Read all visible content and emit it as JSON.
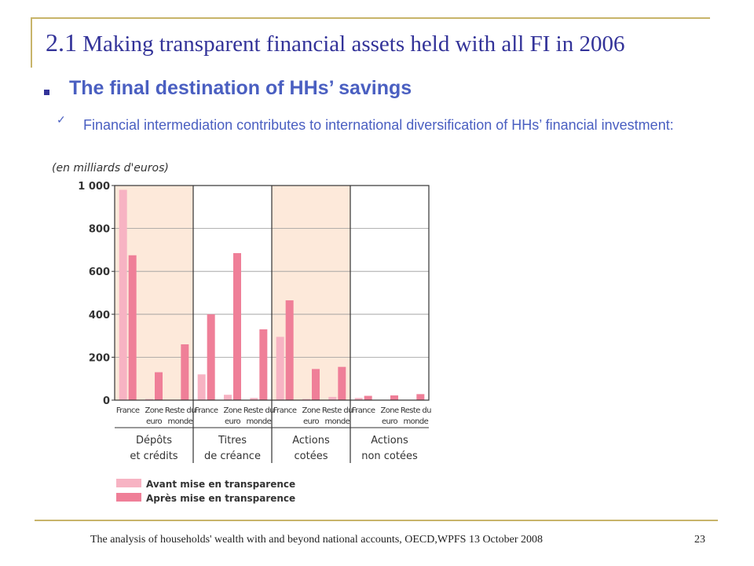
{
  "slide": {
    "title_num": "2.1",
    "title_text": " Making transparent financial assets held with all FI in 2006",
    "heading": "The final destination of HHs’ savings",
    "subtext": "Financial intermediation contributes to international diversification of HHs’ financial investment:",
    "footer": "The analysis of households' wealth with and beyond national accounts, OECD,WPFS 13 October 2008",
    "page_number": "23"
  },
  "colors": {
    "frame": "#c8b46a",
    "title": "#333399",
    "heading": "#4a5fc1",
    "before": "#f7b3c3",
    "after": "#ef7f98",
    "band": "#fde9da"
  },
  "chart_data": {
    "type": "bar",
    "unit_label": "(en milliards d'euros)",
    "ylim": [
      0,
      1000
    ],
    "yticks": [
      "0",
      "200",
      "400",
      "600",
      "800",
      "1 000"
    ],
    "ytick_values": [
      0,
      200,
      400,
      600,
      800,
      1000
    ],
    "groups": [
      {
        "label": [
          "Dépôts",
          "et crédits"
        ],
        "shaded": true
      },
      {
        "label": [
          "Titres",
          "de créance"
        ],
        "shaded": false
      },
      {
        "label": [
          "Actions",
          "cotées"
        ],
        "shaded": true
      },
      {
        "label": [
          "Actions",
          "non cotées"
        ],
        "shaded": false
      }
    ],
    "categories": [
      [
        "France"
      ],
      [
        "Zone",
        "euro"
      ],
      [
        "Reste du",
        "monde"
      ],
      [
        "France"
      ],
      [
        "Zone",
        "euro"
      ],
      [
        "Reste du",
        "monde"
      ],
      [
        "France"
      ],
      [
        "Zone",
        "euro"
      ],
      [
        "Reste du",
        "monde"
      ],
      [
        "France"
      ],
      [
        "Zone",
        "euro"
      ],
      [
        "Reste du",
        "monde"
      ]
    ],
    "series": [
      {
        "name": "Avant mise en transparence",
        "values": [
          980,
          5,
          0,
          120,
          25,
          10,
          295,
          5,
          15,
          10,
          0,
          0
        ]
      },
      {
        "name": "Après mise en transparence",
        "values": [
          675,
          130,
          260,
          400,
          685,
          330,
          465,
          145,
          155,
          20,
          22,
          28
        ]
      }
    ],
    "legend_placement": "bottom-left",
    "grid": true
  }
}
